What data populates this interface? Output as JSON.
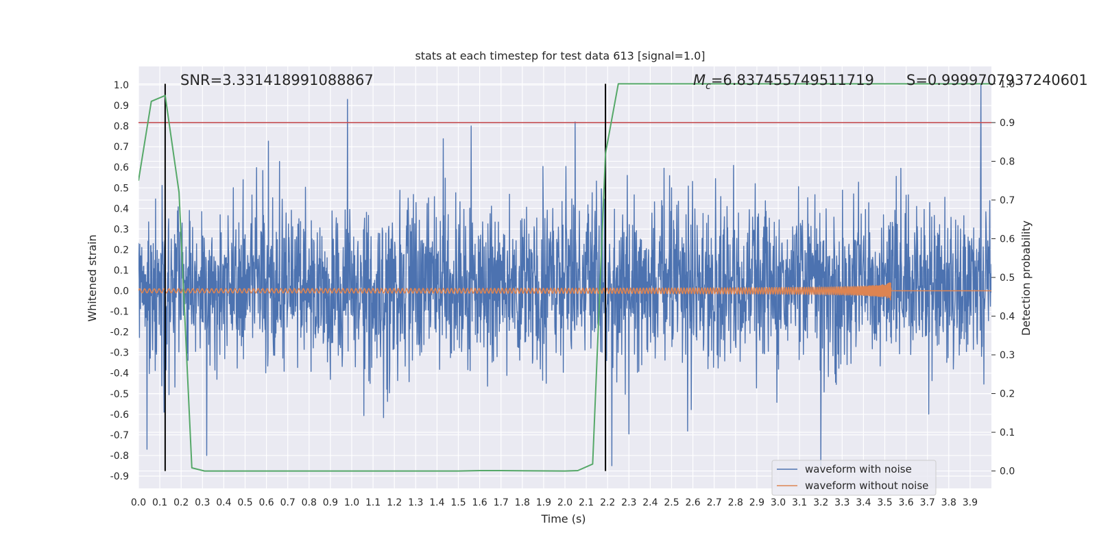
{
  "chart_data": {
    "type": "line",
    "title": "stats at each timestep for test data 613 [signal=1.0]",
    "xlabel": "Time (s)",
    "ylabel_left": "Whitened strain",
    "ylabel_right": "Detection probability",
    "xlim": [
      0.0,
      4.0
    ],
    "ylim_left": [
      -0.96,
      1.09
    ],
    "ylim_right": [
      -0.045,
      1.045
    ],
    "x_ticks": [
      "0.0",
      "0.1",
      "0.2",
      "0.3",
      "0.4",
      "0.5",
      "0.6",
      "0.7",
      "0.8",
      "0.9",
      "1.0",
      "1.1",
      "1.2",
      "1.3",
      "1.4",
      "1.5",
      "1.6",
      "1.7",
      "1.8",
      "1.9",
      "2.0",
      "2.1",
      "2.2",
      "2.3",
      "2.4",
      "2.5",
      "2.6",
      "2.7",
      "2.8",
      "2.9",
      "3.0",
      "3.1",
      "3.2",
      "3.3",
      "3.4",
      "3.5",
      "3.6",
      "3.7",
      "3.8",
      "3.9"
    ],
    "y_ticks_left": [
      "-0.9",
      "-0.8",
      "-0.7",
      "-0.6",
      "-0.5",
      "-0.4",
      "-0.3",
      "-0.2",
      "-0.1",
      "0.0",
      "0.1",
      "0.2",
      "0.3",
      "0.4",
      "0.5",
      "0.6",
      "0.7",
      "0.8",
      "0.9",
      "1.0"
    ],
    "y_ticks_right": [
      "0.0",
      "0.1",
      "0.2",
      "0.3",
      "0.4",
      "0.5",
      "0.6",
      "0.7",
      "0.8",
      "0.9",
      "1.0"
    ],
    "grid": true,
    "legend_position": "lower-right",
    "annotations": {
      "snr": "SNR=3.331418991088867",
      "mc_symbol": "M",
      "mc_sub": "c",
      "mc_value": "=6.837455749511719",
      "s": "S=0.9999707937240601"
    },
    "threshold": {
      "y_right": 0.9,
      "color": "#c44e52"
    },
    "vertical_markers": [
      0.125,
      2.19
    ],
    "series": [
      {
        "name": "waveform with noise",
        "axis": "left",
        "color": "#4c72b0",
        "description": "noisy whitened strain, roughly within [-0.85, 1.0]",
        "peaks": [
          {
            "x": 0.98,
            "y": 0.93
          },
          {
            "x": 3.95,
            "y": 1.0
          },
          {
            "x": 3.2,
            "y": -0.85
          },
          {
            "x": 2.22,
            "y": -0.85
          },
          {
            "x": 0.04,
            "y": -0.77
          },
          {
            "x": 0.32,
            "y": -0.8
          }
        ]
      },
      {
        "name": "waveform without noise",
        "axis": "left",
        "color": "#dd8452",
        "description": "chirp signal growing in amplitude, merger near 3.53 s",
        "amplitude_start": 0.01,
        "amplitude_peak": 0.09,
        "merger_time": 3.53
      },
      {
        "axis": "right",
        "color": "#55a868",
        "x": [
          0.0,
          0.06,
          0.125,
          0.19,
          0.25,
          0.31,
          0.5,
          1.0,
          1.5,
          1.6,
          1.7,
          2.0,
          2.06,
          2.13,
          2.19,
          2.25,
          2.5,
          3.0,
          3.5,
          4.0
        ],
        "y": [
          0.75,
          0.955,
          0.97,
          0.72,
          0.008,
          0.0,
          0.0,
          0.0,
          0.0,
          0.001,
          0.001,
          0.0,
          0.001,
          0.018,
          0.82,
          1.0,
          1.0,
          1.0,
          1.0,
          1.0
        ]
      }
    ]
  }
}
